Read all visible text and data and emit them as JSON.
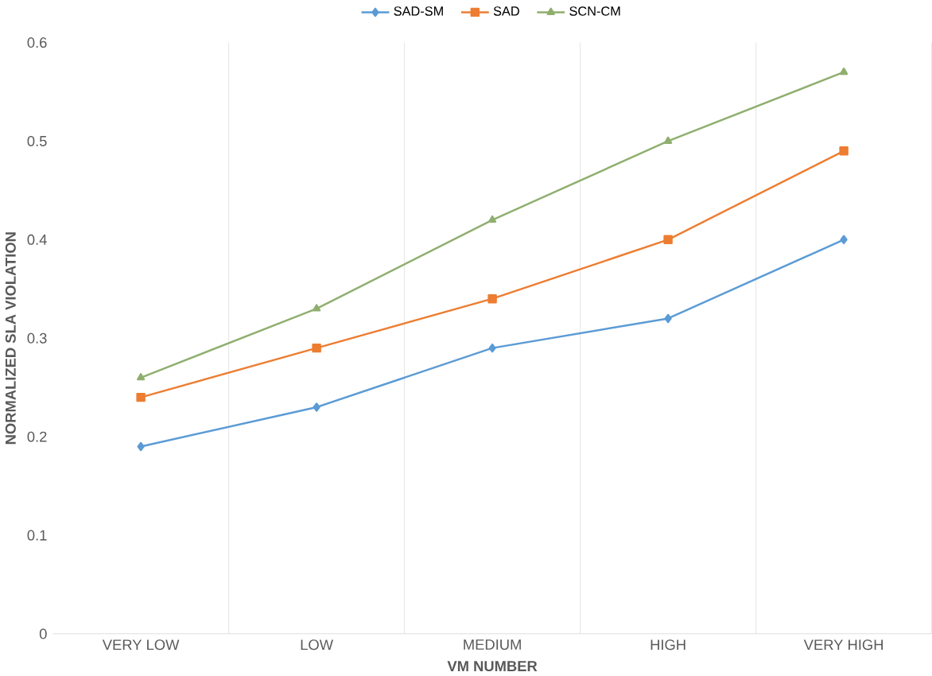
{
  "chart_data": {
    "type": "line",
    "xlabel": "VM NUMBER",
    "ylabel": "NORMALIZED SLA VIOLATION",
    "categories": [
      "VERY LOW",
      "LOW",
      "MEDIUM",
      "HIGH",
      "VERY HIGH"
    ],
    "series": [
      {
        "name": "SAD-SM",
        "color": "#5b9bd5",
        "marker": "diamond",
        "values": [
          0.19,
          0.23,
          0.29,
          0.32,
          0.4
        ]
      },
      {
        "name": "SAD",
        "color": "#ed7d31",
        "marker": "square",
        "values": [
          0.24,
          0.29,
          0.34,
          0.4,
          0.49
        ]
      },
      {
        "name": "SCN-CM",
        "color": "#8faf6e",
        "marker": "triangle",
        "values": [
          0.26,
          0.33,
          0.42,
          0.5,
          0.57
        ]
      }
    ],
    "ylim": [
      0,
      0.6
    ],
    "yticks": [
      0,
      0.1,
      0.2,
      0.3,
      0.4,
      0.5,
      0.6
    ],
    "grid": "x",
    "legend": "top",
    "line_style": "solid"
  }
}
